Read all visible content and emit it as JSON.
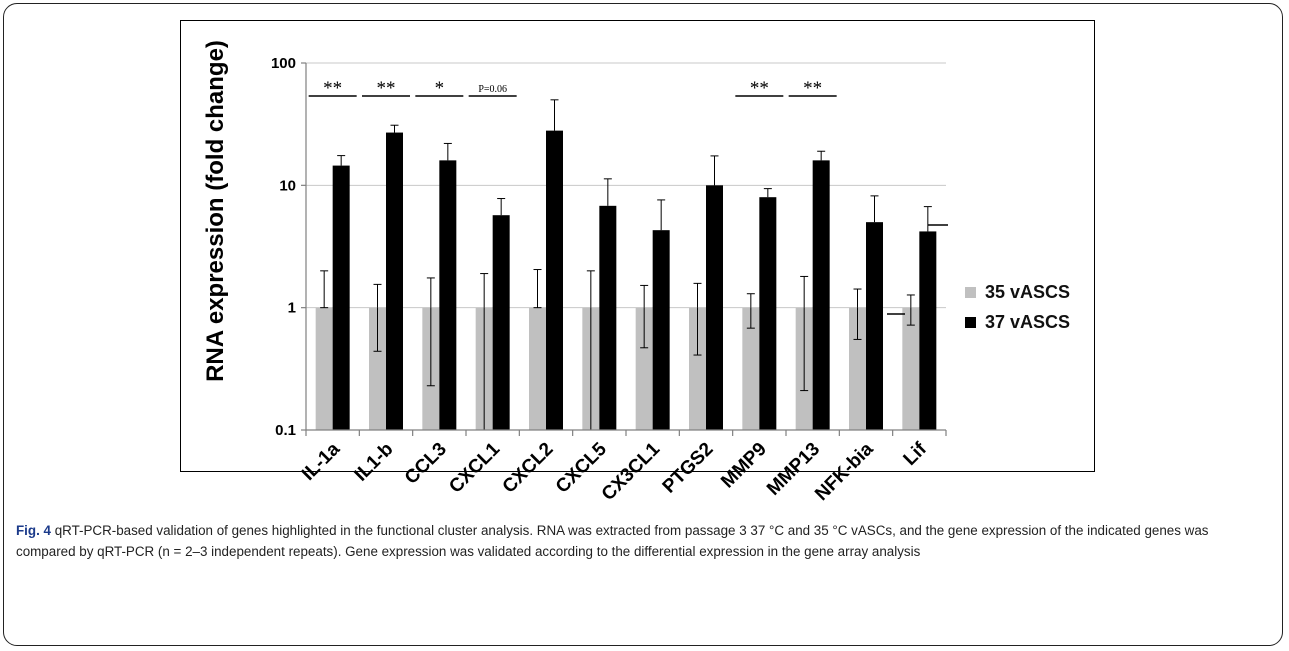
{
  "chart_data": {
    "type": "bar",
    "ylabel": "RNA expression (fold change)",
    "xlabel": "",
    "yscale": "log",
    "ylim": [
      0.1,
      100
    ],
    "yticks": [
      "0.1",
      "1",
      "10",
      "100"
    ],
    "categories": [
      "IL-1a",
      "IL1-b",
      "CCL3",
      "CXCL1",
      "CXCL2",
      "CXCL5",
      "CX3CL1",
      "PTGS2",
      "MMP9",
      "MMP13",
      "NFK-bia",
      "Lif"
    ],
    "series": [
      {
        "name": "35 vASCS",
        "color": "#c0c0c0",
        "values": [
          1,
          1,
          1,
          1,
          1,
          1,
          1,
          1,
          1,
          1,
          1,
          1
        ],
        "err_upper": [
          2.0,
          1.55,
          1.75,
          1.9,
          2.05,
          2.0,
          1.52,
          1.58,
          1.3,
          1.8,
          1.42,
          1.27
        ],
        "err_lower": [
          1,
          0.44,
          0.23,
          0.1,
          1,
          0.1,
          0.47,
          0.41,
          0.68,
          0.21,
          0.55,
          0.72
        ]
      },
      {
        "name": "37 vASCS",
        "color": "#000000",
        "values": [
          14.5,
          27,
          16,
          5.7,
          28,
          6.8,
          4.3,
          10,
          8,
          16,
          5.0,
          4.2
        ],
        "err_upper": [
          17.5,
          31,
          22,
          7.8,
          50,
          11.3,
          7.6,
          17.4,
          9.4,
          19,
          8.2,
          6.7
        ]
      }
    ],
    "significance": [
      {
        "category": "IL-1a",
        "label": "**"
      },
      {
        "category": "IL1-b",
        "label": "**"
      },
      {
        "category": "CCL3",
        "label": "*"
      },
      {
        "category": "CXCL1",
        "label": "P=0.06"
      },
      {
        "category": "MMP9",
        "label": "**"
      },
      {
        "category": "MMP13",
        "label": "**"
      }
    ],
    "legend_position": "right"
  },
  "caption": {
    "label": "Fig. 4",
    "text": " qRT-PCR-based validation of genes highlighted in the functional cluster analysis. RNA was extracted from passage 3 37 °C and 35 °C vASCs, and the gene expression of the indicated genes was compared by qRT-PCR (n = 2–3 independent repeats). Gene expression was validated according to the differential expression in the gene array analysis"
  }
}
